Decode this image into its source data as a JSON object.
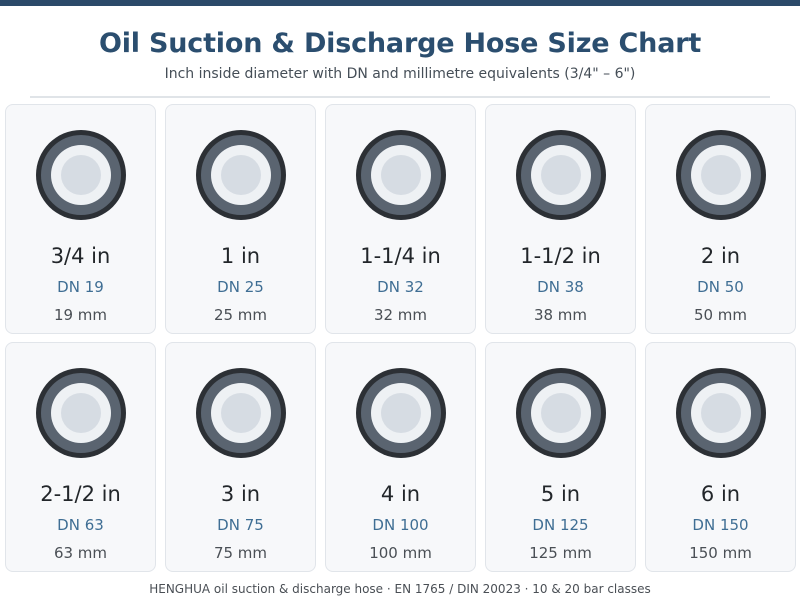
{
  "header": {
    "title": "Oil Suction & Discharge Hose Size Chart",
    "subtitle": "Inch inside diameter with DN and millimetre equivalents (3/4\" – 6\")"
  },
  "sizes": [
    {
      "inch": "3/4 in",
      "dn": "DN 19",
      "mm": "19 mm"
    },
    {
      "inch": "1 in",
      "dn": "DN 25",
      "mm": "25 mm"
    },
    {
      "inch": "1-1/4 in",
      "dn": "DN 32",
      "mm": "32 mm"
    },
    {
      "inch": "1-1/2 in",
      "dn": "DN 38",
      "mm": "38 mm"
    },
    {
      "inch": "2 in",
      "dn": "DN 50",
      "mm": "50 mm"
    },
    {
      "inch": "2-1/2 in",
      "dn": "DN 63",
      "mm": "63 mm"
    },
    {
      "inch": "3 in",
      "dn": "DN 75",
      "mm": "75 mm"
    },
    {
      "inch": "4 in",
      "dn": "DN 100",
      "mm": "100 mm"
    },
    {
      "inch": "5 in",
      "dn": "DN 125",
      "mm": "125 mm"
    },
    {
      "inch": "6 in",
      "dn": "DN 150",
      "mm": "150 mm"
    }
  ],
  "icon": "hose-cross-section-icon",
  "colors": {
    "accent": "#2b4a69",
    "title": "#2b4e6f",
    "dn": "#3f6e94"
  },
  "footer": {
    "text": "HENGHUA oil suction & discharge hose · EN 1765 / DIN 20023 · 10 & 20 bar classes"
  }
}
